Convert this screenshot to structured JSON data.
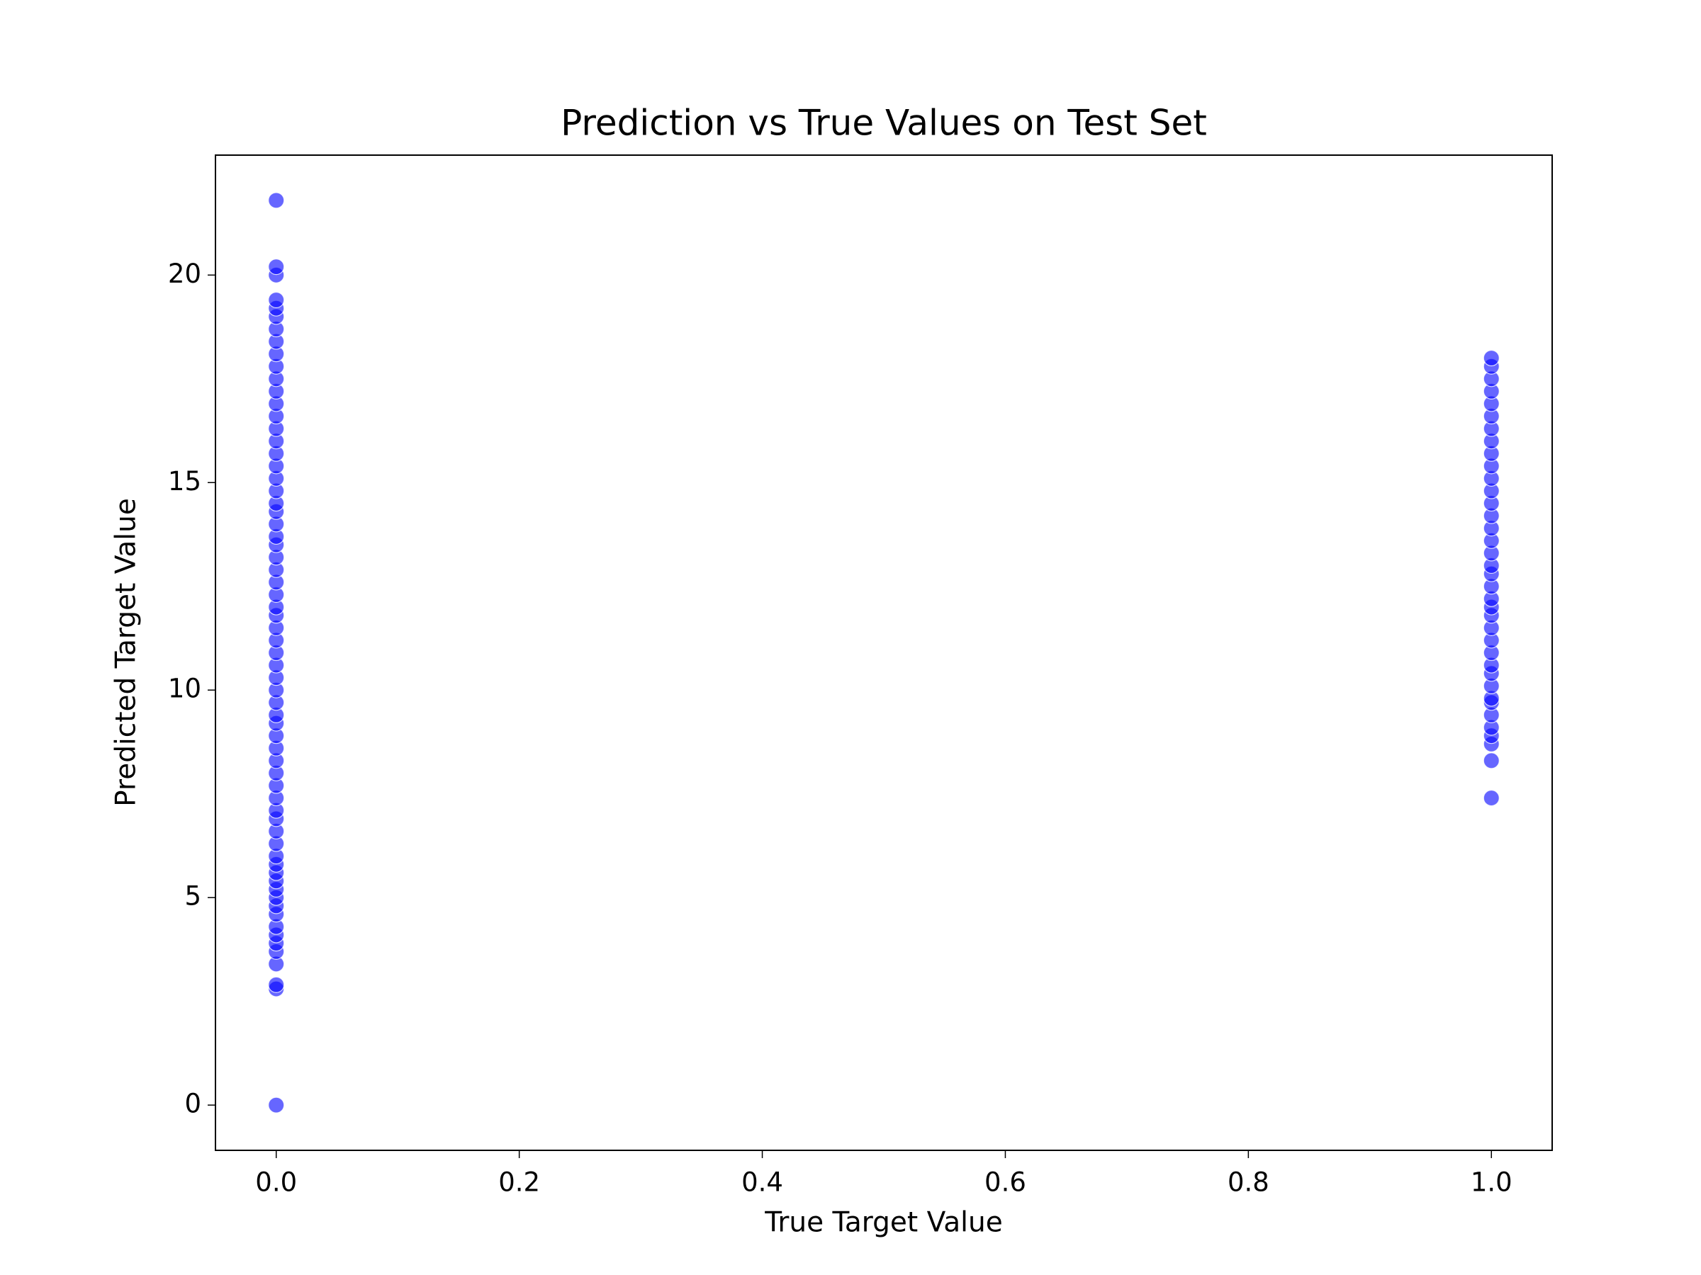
{
  "chart_data": {
    "type": "scatter",
    "title": "Prediction vs True Values on Test Set",
    "x_label": "True Target Value",
    "y_label": "Predicted Target Value",
    "color": "#0000ff",
    "x": [
      0,
      0,
      0,
      0,
      0,
      0,
      0,
      0,
      0,
      0,
      0,
      0,
      0,
      0,
      0,
      0,
      0,
      0,
      0,
      0,
      0,
      0,
      0,
      0,
      0,
      0,
      0,
      0,
      0,
      0,
      0,
      0,
      0,
      0,
      0,
      0,
      0,
      0,
      0,
      0,
      0,
      0,
      0,
      0,
      0,
      0,
      0,
      0,
      0,
      0,
      0,
      0,
      0,
      0,
      0,
      0,
      0,
      0,
      0,
      0,
      0,
      0,
      0,
      0,
      0,
      0,
      1,
      1,
      1,
      1,
      1,
      1,
      1,
      1,
      1,
      1,
      1,
      1,
      1,
      1,
      1,
      1,
      1,
      1,
      1,
      1,
      1,
      1,
      1,
      1,
      1,
      1,
      1,
      1,
      1,
      1,
      1,
      1,
      1,
      1,
      1,
      1,
      1
    ],
    "values": [
      0,
      2.8,
      2.9,
      3.4,
      3.7,
      3.9,
      4.1,
      4.3,
      4.6,
      4.8,
      5.0,
      5.2,
      5.4,
      5.6,
      5.8,
      6.0,
      6.3,
      6.6,
      6.9,
      7.1,
      7.4,
      7.7,
      8.0,
      8.3,
      8.6,
      8.9,
      9.2,
      9.4,
      9.7,
      10.0,
      10.3,
      10.6,
      10.9,
      11.2,
      11.5,
      11.8,
      12.0,
      12.3,
      12.6,
      12.9,
      13.2,
      13.5,
      13.7,
      14.0,
      14.3,
      14.5,
      14.8,
      15.1,
      15.4,
      15.7,
      16.0,
      16.3,
      16.6,
      16.9,
      17.2,
      17.5,
      17.8,
      18.1,
      18.4,
      18.7,
      19.0,
      19.2,
      19.4,
      20.0,
      20.2,
      21.8,
      7.4,
      8.3,
      8.7,
      8.9,
      9.1,
      9.4,
      9.7,
      9.8,
      10.1,
      10.4,
      10.6,
      10.9,
      11.2,
      11.5,
      11.8,
      12.0,
      12.2,
      12.5,
      12.8,
      13.0,
      13.3,
      13.6,
      13.9,
      14.2,
      14.5,
      14.8,
      15.1,
      15.4,
      15.7,
      16.0,
      16.3,
      16.6,
      16.9,
      17.2,
      17.5,
      17.8,
      18.0
    ],
    "xlim": [
      -0.05,
      1.05
    ],
    "ylim": [
      -1.09,
      22.89
    ],
    "xticks": [
      {
        "value": 0,
        "label": "0.0"
      },
      0.2,
      0.4,
      0.6,
      0.8,
      {
        "value": 1,
        "label": "1.0"
      }
    ],
    "yticks": [
      0,
      5,
      10,
      15,
      20
    ],
    "grid": false
  }
}
